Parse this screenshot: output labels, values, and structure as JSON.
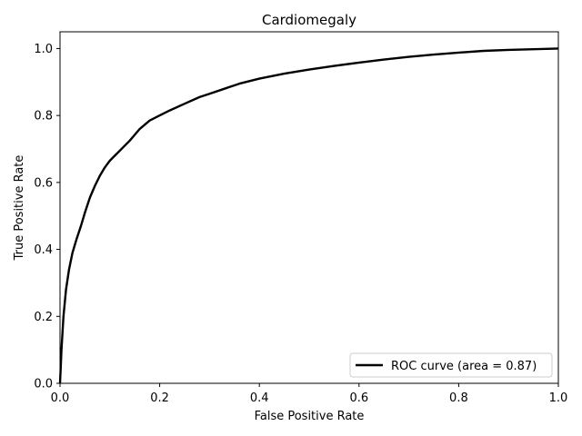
{
  "chart_data": {
    "type": "line",
    "title": "Cardiomegaly",
    "xlabel": "False Positive Rate",
    "ylabel": "True Positive Rate",
    "xlim": [
      0.0,
      1.0
    ],
    "ylim": [
      0.0,
      1.05
    ],
    "x_ticks": [
      "0.0",
      "0.2",
      "0.4",
      "0.6",
      "0.8",
      "1.0"
    ],
    "y_ticks": [
      "0.0",
      "0.2",
      "0.4",
      "0.6",
      "0.8",
      "1.0"
    ],
    "grid": false,
    "legend_position": "bottom-right",
    "series": [
      {
        "name": "ROC curve (area = 0.87)",
        "color": "#000000",
        "x": [
          0.0,
          0.003,
          0.007,
          0.012,
          0.018,
          0.025,
          0.033,
          0.042,
          0.05,
          0.06,
          0.07,
          0.08,
          0.09,
          0.1,
          0.12,
          0.14,
          0.16,
          0.18,
          0.2,
          0.22,
          0.25,
          0.28,
          0.3,
          0.33,
          0.36,
          0.4,
          0.45,
          0.5,
          0.55,
          0.6,
          0.65,
          0.7,
          0.75,
          0.8,
          0.85,
          0.9,
          0.95,
          1.0
        ],
        "y": [
          0.0,
          0.1,
          0.2,
          0.28,
          0.34,
          0.39,
          0.43,
          0.47,
          0.51,
          0.555,
          0.59,
          0.62,
          0.645,
          0.665,
          0.695,
          0.725,
          0.76,
          0.785,
          0.8,
          0.815,
          0.835,
          0.855,
          0.865,
          0.88,
          0.895,
          0.91,
          0.925,
          0.937,
          0.948,
          0.958,
          0.967,
          0.975,
          0.982,
          0.988,
          0.993,
          0.996,
          0.998,
          1.0
        ]
      }
    ]
  }
}
